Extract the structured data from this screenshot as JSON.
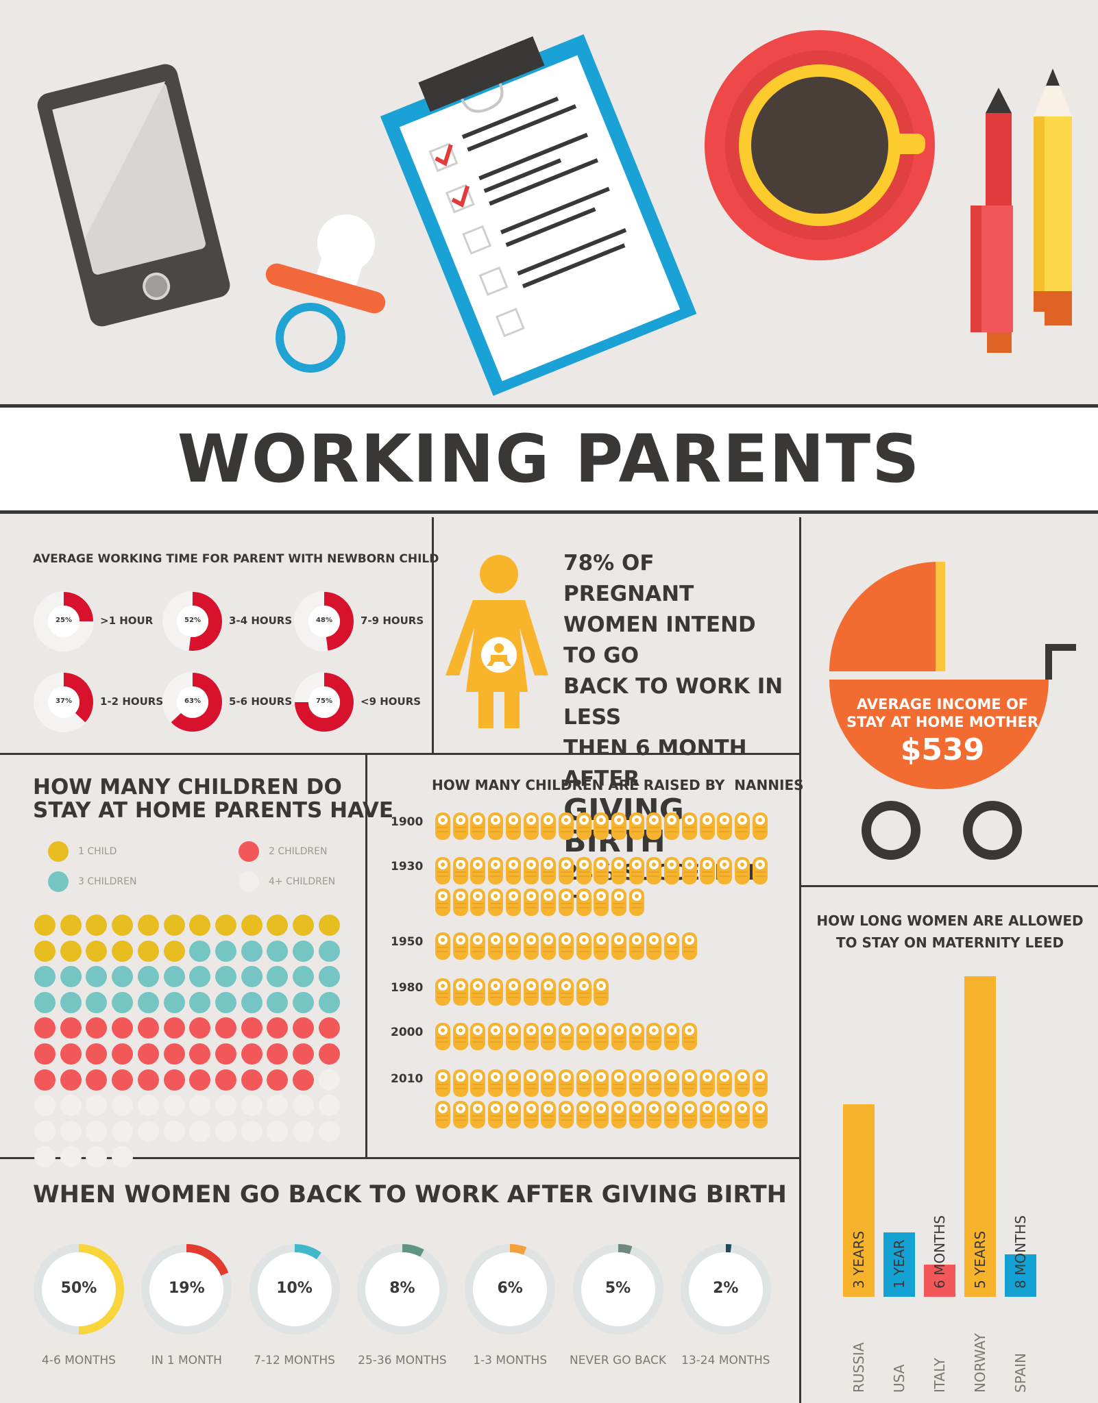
{
  "title": "WORKING PARENTS",
  "colors": {
    "background": "#ebe8e5",
    "dark": "#3a3836",
    "red": "#d8122d",
    "yellow": "#f5b32f",
    "blue": "#14a2d4",
    "coral": "#f2585a",
    "orange": "#f26b30",
    "teal": "#74c5c3",
    "gold": "#e8bd1f",
    "white_dot": "#f1f0ef"
  },
  "illustration": {
    "icons": [
      "phone-icon",
      "pacifier-icon",
      "clipboard-icon",
      "coffee-cup-icon",
      "pen-icon",
      "pencil-icon"
    ]
  },
  "working_time": {
    "title": "AVERAGE WORKING TIME FOR PARENT WITH NEWBORN CHILD",
    "items": [
      {
        "percent": 25,
        "label_pct": "25%",
        "label": ">1 HOUR"
      },
      {
        "percent": 52,
        "label_pct": "52%",
        "label": "3-4 HOURS"
      },
      {
        "percent": 48,
        "label_pct": "48%",
        "label": "7-9 HOURS"
      },
      {
        "percent": 37,
        "label_pct": "37%",
        "label": "1-2 HOURS"
      },
      {
        "percent": 63,
        "label_pct": "63%",
        "label": "5-6 HOURS"
      },
      {
        "percent": 75,
        "label_pct": "75%",
        "label": "<9 HOURS"
      }
    ]
  },
  "pregnant": {
    "lines": [
      "78% OF PREGNANT",
      "WOMEN INTEND TO GO",
      "BACK TO WORK IN LESS",
      "THEN 6 MONTH AFTER",
      "GIVING BIRTH",
      "24% SUCCEED IN IT"
    ]
  },
  "income": {
    "line1": "AVERAGE INCOME OF",
    "line2": "STAY AT HOME MOTHER",
    "value": "$539"
  },
  "children_count": {
    "title_line1": "HOW MANY CHILDREN DO",
    "title_line2": "STAY AT HOME PARENTS HAVE",
    "legend": [
      {
        "label": "1 CHILD",
        "color": "#e8bd1f",
        "count": 18
      },
      {
        "label": "2 CHILDREN",
        "color": "#f2585a",
        "count": 35
      },
      {
        "label": "3 CHILDREN",
        "color": "#74c5c3",
        "count": 30
      },
      {
        "label": "4+ CHILDREN",
        "color": "#f1f0ef",
        "count": 29
      }
    ],
    "order": [
      "1 CHILD",
      "3 CHILDREN",
      "2 CHILDREN",
      "4+ CHILDREN"
    ]
  },
  "nannies": {
    "title": "HOW MANY CHILDREN ARE RAISED BY  NANNIES",
    "rows": [
      {
        "year": "1900",
        "count": 19
      },
      {
        "year": "1930",
        "count": 31
      },
      {
        "year": "1950",
        "count": 15
      },
      {
        "year": "1980",
        "count": 10
      },
      {
        "year": "2000",
        "count": 15
      },
      {
        "year": "2010",
        "count": 38
      }
    ]
  },
  "back_to_work": {
    "title": "WHEN WOMEN GO BACK TO WORK AFTER GIVING BIRTH",
    "items": [
      {
        "percent": 50,
        "label_pct": "50%",
        "label": "4-6 MONTHS",
        "color": "#f8d53a"
      },
      {
        "percent": 19,
        "label_pct": "19%",
        "label": "IN 1 MONTH",
        "color": "#e23b2f"
      },
      {
        "percent": 10,
        "label_pct": "10%",
        "label": "7-12 MONTHS",
        "color": "#3fb8c7"
      },
      {
        "percent": 8,
        "label_pct": "8%",
        "label": "25-36 MONTHS",
        "color": "#5e9683"
      },
      {
        "percent": 6,
        "label_pct": "6%",
        "label": "1-3 MONTHS",
        "color": "#f3a13a"
      },
      {
        "percent": 5,
        "label_pct": "5%",
        "label": "NEVER GO BACK",
        "color": "#6d8a7f"
      },
      {
        "percent": 2,
        "label_pct": "2%",
        "label": "13-24 MONTHS",
        "color": "#1f4a5a"
      }
    ]
  },
  "maternity": {
    "title_line1": "HOW LONG WOMEN ARE ALLOWED",
    "title_line2": "TO STAY ON MATERNITY LEED",
    "bars": [
      {
        "country": "RUSSIA",
        "months": 36,
        "label": "3 YEARS",
        "color": "#f7b32b"
      },
      {
        "country": "USA",
        "months": 12,
        "label": "1 YEAR",
        "color": "#14a2d4"
      },
      {
        "country": "ITALY",
        "months": 6,
        "label": "6 MONTHS",
        "color": "#f2585a"
      },
      {
        "country": "NORWAY",
        "months": 60,
        "label": "5 YEARS",
        "color": "#f7b32b"
      },
      {
        "country": "SPAIN",
        "months": 8,
        "label": "8 MONTHS",
        "color": "#14a2d4"
      }
    ]
  }
}
